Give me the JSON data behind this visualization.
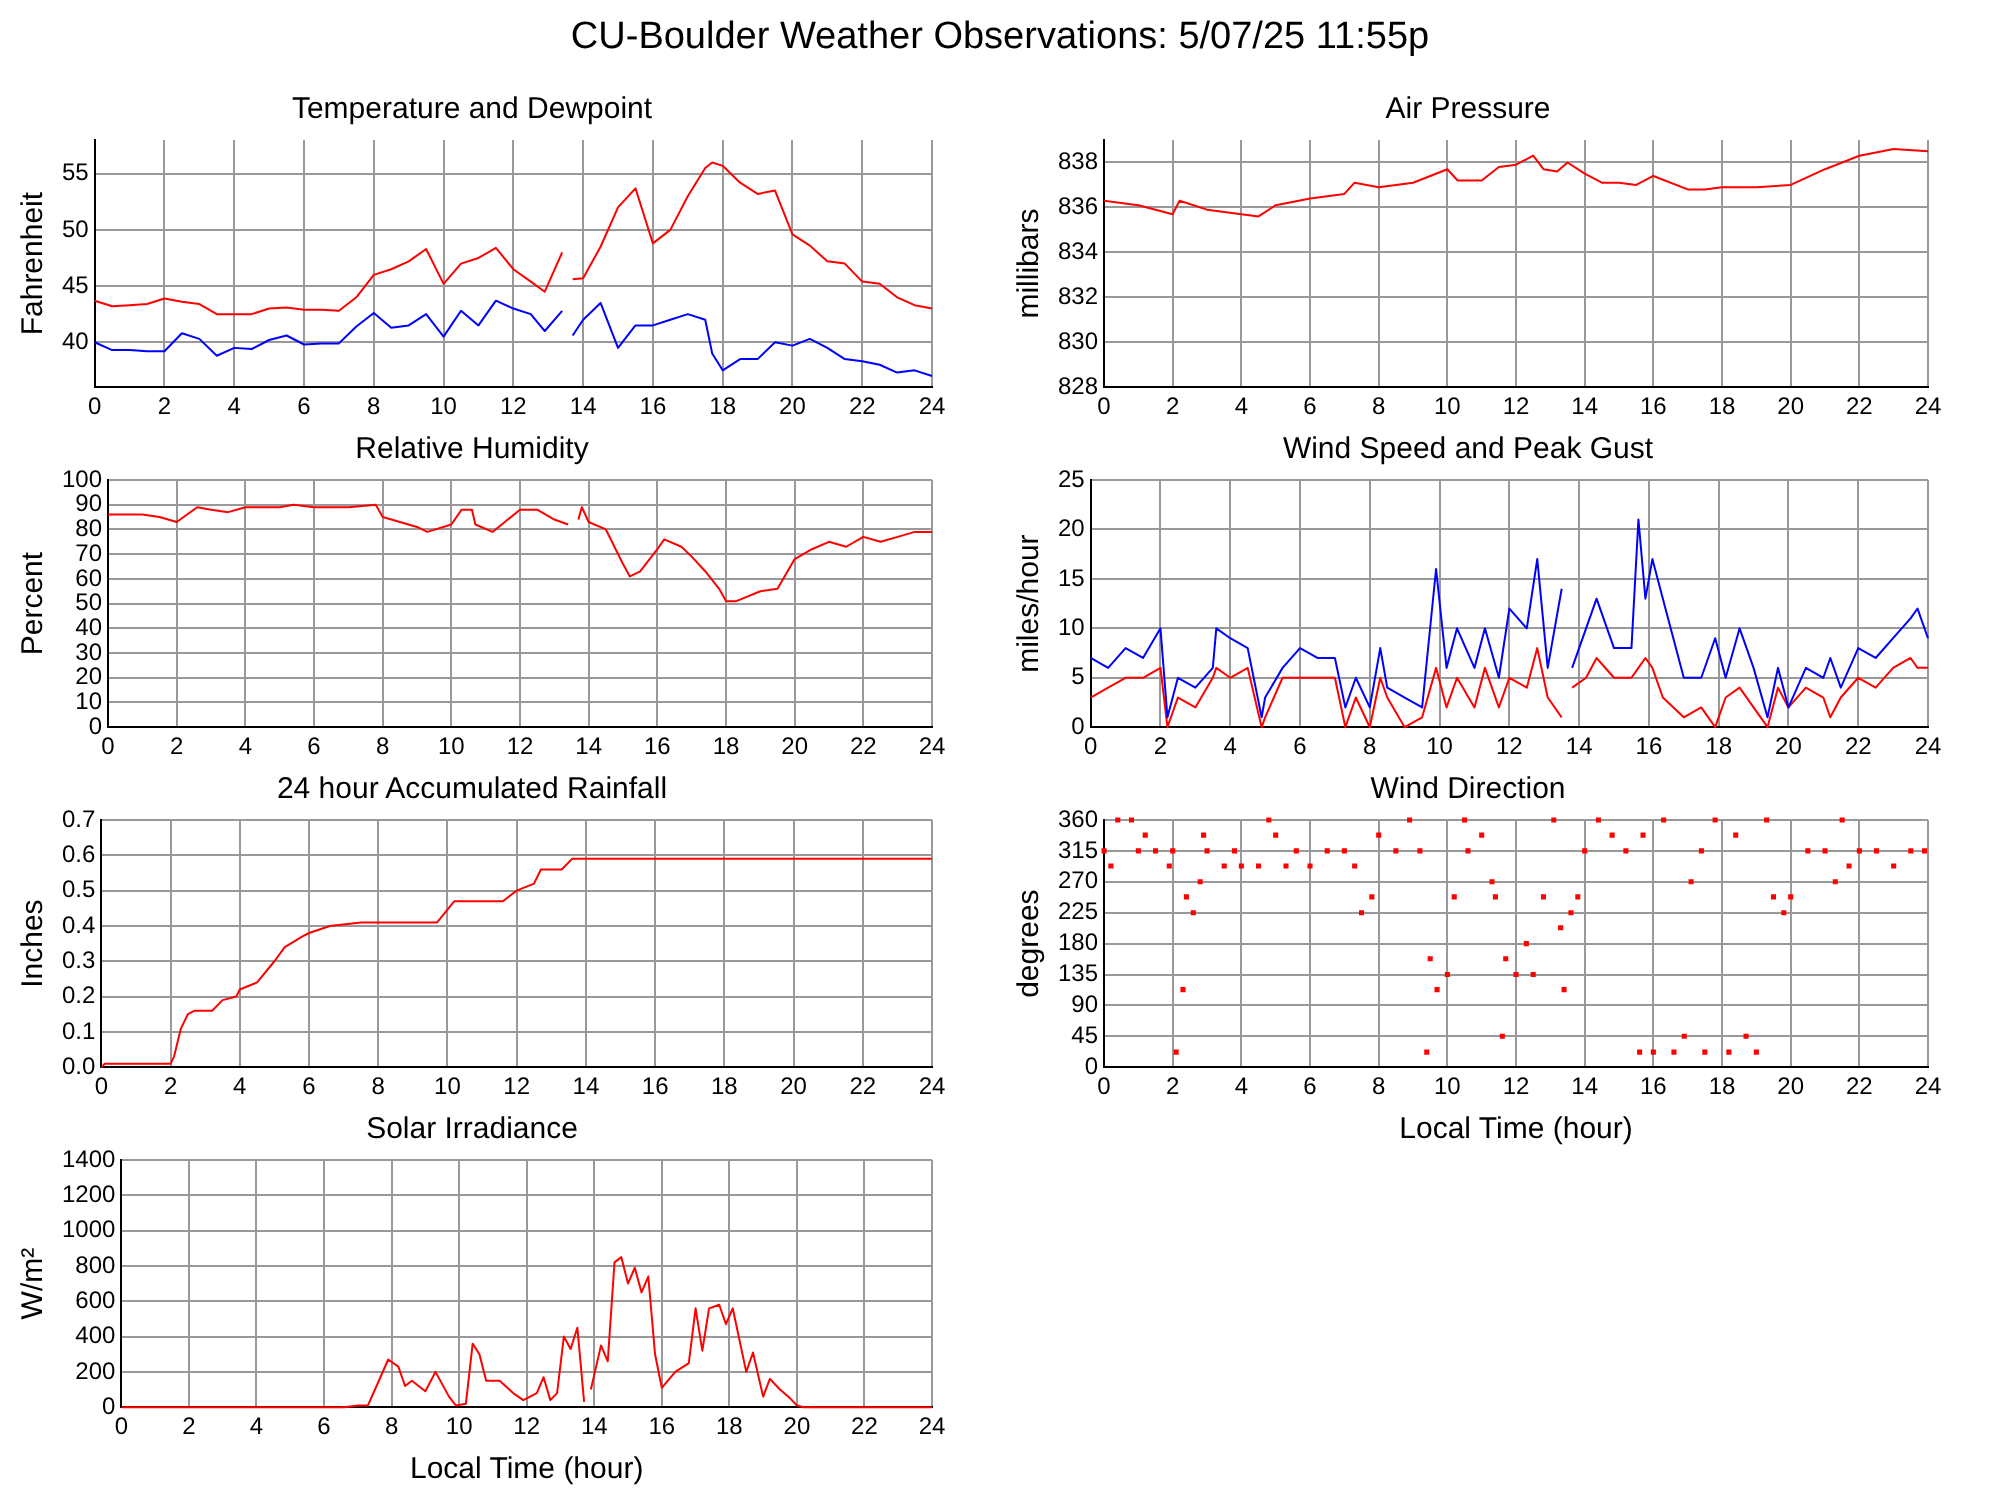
{
  "chart_data": [
    {
      "type": "line",
      "title": "Temperature and Dewpoint",
      "ylabel": "Fahrenheit",
      "grid": true,
      "legend": false,
      "annotations": [
        "CU-Boulder Weather Observations: 5/07/25 11:55p"
      ],
      "x": [
        0,
        0.5,
        1,
        1.5,
        2,
        2.5,
        3,
        3.5,
        4,
        4.5,
        5,
        5.5,
        6,
        6.5,
        7,
        7.5,
        8,
        8.5,
        9,
        9.5,
        10,
        10.5,
        11,
        11.5,
        12,
        12.5,
        12.9,
        13.4,
        13.5,
        13.7,
        14,
        14.5,
        15,
        15.5,
        16,
        16.5,
        17,
        17.5,
        17.7,
        18,
        18.5,
        19,
        19.5,
        20,
        20.5,
        21,
        21.5,
        22,
        22.5,
        23,
        23.5,
        24
      ],
      "xlim": [
        0,
        24
      ],
      "xticks": [
        0,
        2,
        4,
        6,
        8,
        10,
        12,
        14,
        16,
        18,
        20,
        22,
        24
      ],
      "ylim": [
        36,
        58
      ],
      "yticks": [
        40,
        45,
        50,
        55
      ],
      "series": [
        {
          "color": "#ff0000",
          "values": [
            43.7,
            43.2,
            43.3,
            43.4,
            43.9,
            43.6,
            43.4,
            42.5,
            42.5,
            42.5,
            43.0,
            43.1,
            42.9,
            42.9,
            42.8,
            44.0,
            46.0,
            46.5,
            47.2,
            48.3,
            45.2,
            47.0,
            47.5,
            48.4,
            46.5,
            45.4,
            44.5,
            48.0,
            null,
            45.6,
            45.7,
            48.5,
            52.0,
            53.7,
            48.8,
            50.0,
            53.0,
            55.5,
            56.0,
            55.7,
            54.2,
            53.2,
            53.5,
            49.6,
            48.6,
            47.2,
            47.0,
            45.4,
            45.2,
            44.0,
            43.3,
            43.0
          ]
        },
        {
          "color": "#0000ff",
          "values": [
            40.0,
            39.3,
            39.3,
            39.2,
            39.2,
            40.8,
            40.3,
            38.8,
            39.5,
            39.4,
            40.2,
            40.6,
            39.8,
            39.9,
            39.9,
            41.4,
            42.6,
            41.3,
            41.5,
            42.5,
            40.5,
            42.8,
            41.5,
            43.7,
            43.0,
            42.5,
            41.0,
            42.8,
            null,
            40.6,
            42.0,
            43.5,
            39.5,
            41.5,
            41.5,
            42.0,
            42.5,
            42.0,
            39.0,
            37.5,
            38.5,
            38.5,
            40.0,
            39.7,
            40.3,
            39.5,
            38.5,
            38.3,
            38.0,
            37.3,
            37.5,
            37.0
          ]
        }
      ]
    },
    {
      "type": "line",
      "title": "Air Pressure",
      "ylabel": "millibars",
      "grid": true,
      "legend": false,
      "x": [
        0,
        1,
        2,
        2.2,
        3,
        4,
        4.5,
        5,
        6,
        7,
        7.3,
        8,
        9,
        10,
        10.3,
        11,
        11.5,
        12,
        12.5,
        12.8,
        13.2,
        13.5,
        14,
        14.5,
        15,
        15.5,
        16,
        17,
        17.5,
        18,
        19,
        20,
        21,
        22,
        23,
        24
      ],
      "xlim": [
        0,
        24
      ],
      "xticks": [
        0,
        2,
        4,
        6,
        8,
        10,
        12,
        14,
        16,
        18,
        20,
        22,
        24
      ],
      "ylim": [
        828,
        839
      ],
      "yticks": [
        828,
        830,
        832,
        834,
        836,
        838
      ],
      "series": [
        {
          "color": "#ff0000",
          "values": [
            836.3,
            836.1,
            835.7,
            836.3,
            835.9,
            835.7,
            835.6,
            836.1,
            836.4,
            836.6,
            837.1,
            836.9,
            837.1,
            837.7,
            837.2,
            837.2,
            837.8,
            837.9,
            838.3,
            837.7,
            837.6,
            838.0,
            837.5,
            837.1,
            837.1,
            837.0,
            837.4,
            836.8,
            836.8,
            836.9,
            836.9,
            837.0,
            837.7,
            838.3,
            838.6,
            838.5
          ]
        }
      ]
    },
    {
      "type": "line",
      "title": "Relative Humidity",
      "ylabel": "Percent",
      "grid": true,
      "legend": false,
      "x": [
        0,
        1,
        1.5,
        2,
        2.6,
        3,
        3.5,
        4,
        5,
        5.4,
        6,
        7,
        7.8,
        8,
        8.5,
        9,
        9.3,
        10,
        10.3,
        10.6,
        10.7,
        11.2,
        12,
        12.5,
        13,
        13.4,
        13.5,
        13.7,
        13.8,
        14,
        14.5,
        15,
        15.2,
        15.5,
        16,
        16.2,
        16.7,
        17,
        17.4,
        17.8,
        18,
        18.3,
        19,
        19.5,
        20,
        20.5,
        21,
        21.5,
        22,
        22.5,
        23,
        23.5,
        24
      ],
      "xlim": [
        0,
        24
      ],
      "xticks": [
        0,
        2,
        4,
        6,
        8,
        10,
        12,
        14,
        16,
        18,
        20,
        22,
        24
      ],
      "ylim": [
        0,
        100
      ],
      "yticks": [
        0,
        10,
        20,
        30,
        40,
        50,
        60,
        70,
        80,
        90,
        100
      ],
      "series": [
        {
          "color": "#ff0000",
          "values": [
            86,
            86,
            85,
            83,
            89,
            88,
            87,
            89,
            89,
            90,
            89,
            89,
            90,
            85,
            83,
            81,
            79,
            82,
            88,
            88,
            82,
            79,
            88,
            88,
            84,
            82,
            null,
            84,
            89,
            83,
            80,
            66,
            61,
            63,
            72,
            76,
            73,
            69,
            63,
            56,
            51,
            51,
            55,
            56,
            68,
            72,
            75,
            73,
            77,
            75,
            77,
            79,
            79
          ]
        }
      ]
    },
    {
      "type": "line",
      "title": "Wind Speed and Peak Gust",
      "ylabel": "miles/hour",
      "grid": true,
      "legend": false,
      "x": [
        0,
        0.5,
        1,
        1.5,
        2,
        2.2,
        2.5,
        3,
        3.5,
        3.6,
        4,
        4.5,
        4.9,
        5,
        5.5,
        6,
        6.5,
        7,
        7.3,
        7.6,
        8,
        8.3,
        8.5,
        9,
        9.5,
        9.9,
        10.2,
        10.5,
        11,
        11.3,
        11.7,
        12,
        12.5,
        12.8,
        13.1,
        13.5,
        13.6,
        13.8,
        14.2,
        14.5,
        15,
        15.5,
        15.7,
        15.9,
        16.1,
        16.4,
        17,
        17.5,
        17.9,
        18.2,
        18.6,
        19,
        19.4,
        19.7,
        20,
        20.5,
        21,
        21.2,
        21.5,
        22,
        22.5,
        23,
        23.5,
        23.7,
        24
      ],
      "xlim": [
        0,
        24
      ],
      "xticks": [
        0,
        2,
        4,
        6,
        8,
        10,
        12,
        14,
        16,
        18,
        20,
        22,
        24
      ],
      "ylim": [
        0,
        25
      ],
      "yticks": [
        0,
        5,
        10,
        15,
        20,
        25
      ],
      "series": [
        {
          "color": "#0000ff",
          "values": [
            7,
            6,
            8,
            7,
            10,
            1,
            5,
            4,
            6,
            10,
            9,
            8,
            1,
            3,
            6,
            8,
            7,
            7,
            2,
            5,
            2,
            8,
            4,
            3,
            2,
            16,
            6,
            10,
            6,
            10,
            5,
            12,
            10,
            17,
            6,
            14,
            null,
            6,
            10,
            13,
            8,
            8,
            21,
            13,
            17,
            13,
            5,
            5,
            9,
            5,
            10,
            6,
            1,
            6,
            2,
            6,
            5,
            7,
            4,
            8,
            7,
            9,
            11,
            12,
            9
          ]
        },
        {
          "color": "#ff0000",
          "values": [
            3,
            4,
            5,
            5,
            6,
            0,
            3,
            2,
            5,
            6,
            5,
            6,
            0,
            1,
            5,
            5,
            5,
            5,
            0,
            3,
            0,
            5,
            3,
            0,
            1,
            6,
            2,
            5,
            2,
            6,
            2,
            5,
            4,
            8,
            3,
            1,
            null,
            4,
            5,
            7,
            5,
            5,
            6,
            7,
            6,
            3,
            1,
            2,
            0,
            3,
            4,
            2,
            0,
            4,
            2,
            4,
            3,
            1,
            3,
            5,
            4,
            6,
            7,
            6,
            6
          ]
        }
      ]
    },
    {
      "type": "line",
      "title": "24 hour Accumulated Rainfall",
      "ylabel": "Inches",
      "grid": true,
      "legend": false,
      "x": [
        0,
        0.1,
        2,
        2.1,
        2.3,
        2.5,
        2.7,
        3.2,
        3.5,
        3.9,
        4,
        4.5,
        5,
        5.3,
        5.8,
        6,
        6.6,
        7.5,
        9.7,
        10.2,
        11.6,
        12,
        12.5,
        12.7,
        13.3,
        13.6,
        24
      ],
      "xlim": [
        0,
        24
      ],
      "xticks": [
        0,
        2,
        4,
        6,
        8,
        10,
        12,
        14,
        16,
        18,
        20,
        22,
        24
      ],
      "ylim": [
        0,
        0.7
      ],
      "yticks": [
        {
          "value": 0,
          "label": "0.0"
        },
        0.1,
        0.2,
        0.3,
        0.4,
        0.5,
        0.6,
        0.7
      ],
      "series": [
        {
          "color": "#ff0000",
          "values": [
            0,
            0.01,
            0.01,
            0.03,
            0.11,
            0.15,
            0.16,
            0.16,
            0.19,
            0.2,
            0.22,
            0.24,
            0.3,
            0.34,
            0.37,
            0.38,
            0.4,
            0.41,
            0.41,
            0.47,
            0.47,
            0.5,
            0.52,
            0.56,
            0.56,
            0.59,
            0.59
          ]
        }
      ]
    },
    {
      "type": "scatter",
      "title": "Wind Direction",
      "ylabel": "degrees",
      "xlabel": "Local Time (hour)",
      "grid": true,
      "legend": false,
      "marker": "square",
      "x": [
        0,
        0.2,
        0.4,
        0.8,
        1,
        1.2,
        1.5,
        1.9,
        2,
        2.1,
        2.3,
        2.4,
        2.6,
        2.8,
        2.9,
        3,
        3.5,
        3.8,
        4,
        4.5,
        4.8,
        5,
        5.3,
        5.6,
        6,
        6.5,
        7,
        7.3,
        7.5,
        7.8,
        8,
        8.5,
        8.9,
        9.2,
        9.4,
        9.5,
        9.7,
        10,
        10.2,
        10.5,
        10.6,
        11,
        11.3,
        11.4,
        11.6,
        11.7,
        12,
        12.3,
        12.5,
        12.8,
        13.1,
        13.3,
        13.4,
        13.6,
        13.8,
        14,
        14.4,
        14.8,
        15.2,
        15.6,
        15.7,
        16,
        16.3,
        16.6,
        16.9,
        17.1,
        17.4,
        17.5,
        17.8,
        18.2,
        18.4,
        18.7,
        19,
        19.3,
        19.5,
        19.8,
        20,
        20.5,
        21,
        21.3,
        21.5,
        21.7,
        22,
        22.5,
        23,
        23.5,
        23.9
      ],
      "xlim": [
        0,
        24
      ],
      "xticks": [
        0,
        2,
        4,
        6,
        8,
        10,
        12,
        14,
        16,
        18,
        20,
        22,
        24
      ],
      "ylim": [
        0,
        360
      ],
      "yticks": [
        0,
        45,
        90,
        135,
        180,
        225,
        270,
        315,
        360
      ],
      "series": [
        {
          "color": "#ff0000",
          "values": [
            315,
            293,
            360,
            360,
            315,
            338,
            315,
            293,
            315,
            22,
            113,
            248,
            225,
            270,
            338,
            315,
            293,
            315,
            293,
            293,
            360,
            338,
            293,
            315,
            293,
            315,
            315,
            293,
            225,
            248,
            338,
            315,
            360,
            315,
            22,
            158,
            113,
            135,
            248,
            360,
            315,
            338,
            270,
            248,
            45,
            158,
            135,
            180,
            135,
            248,
            360,
            203,
            113,
            225,
            248,
            315,
            360,
            338,
            315,
            22,
            338,
            22,
            360,
            22,
            45,
            270,
            315,
            22,
            360,
            22,
            338,
            45,
            22,
            360,
            248,
            225,
            248,
            315,
            315,
            270,
            360,
            293,
            315,
            315,
            293,
            315,
            315
          ]
        }
      ]
    },
    {
      "type": "line",
      "title": "Solar Irradiance",
      "ylabel": "W/m²",
      "xlabel": "Local Time (hour)",
      "grid": true,
      "legend": false,
      "x": [
        0,
        6.6,
        7,
        7.3,
        7.6,
        7.9,
        8.2,
        8.4,
        8.6,
        9,
        9.3,
        9.7,
        9.9,
        10.2,
        10.4,
        10.6,
        10.8,
        11.2,
        11.6,
        11.9,
        12.3,
        12.5,
        12.7,
        12.9,
        13.1,
        13.3,
        13.5,
        13.7,
        13.8,
        13.9,
        14.2,
        14.4,
        14.6,
        14.8,
        15,
        15.2,
        15.4,
        15.6,
        15.8,
        16,
        16.4,
        16.8,
        17,
        17.2,
        17.4,
        17.7,
        17.9,
        18.1,
        18.5,
        18.7,
        19,
        19.2,
        19.5,
        19.8,
        20,
        20.2,
        24
      ],
      "xlim": [
        0,
        24
      ],
      "xticks": [
        0,
        2,
        4,
        6,
        8,
        10,
        12,
        14,
        16,
        18,
        20,
        22,
        24
      ],
      "ylim": [
        0,
        1400
      ],
      "yticks": [
        0,
        200,
        400,
        600,
        800,
        1000,
        1200,
        1400
      ],
      "series": [
        {
          "color": "#ff0000",
          "values": [
            0,
            0,
            10,
            10,
            140,
            270,
            230,
            120,
            150,
            90,
            200,
            60,
            10,
            20,
            360,
            300,
            150,
            150,
            80,
            40,
            80,
            170,
            40,
            80,
            400,
            330,
            450,
            30,
            null,
            100,
            350,
            260,
            820,
            850,
            700,
            790,
            650,
            740,
            300,
            110,
            200,
            250,
            560,
            320,
            560,
            580,
            470,
            560,
            200,
            310,
            60,
            160,
            100,
            50,
            10,
            0,
            0
          ]
        }
      ]
    }
  ]
}
